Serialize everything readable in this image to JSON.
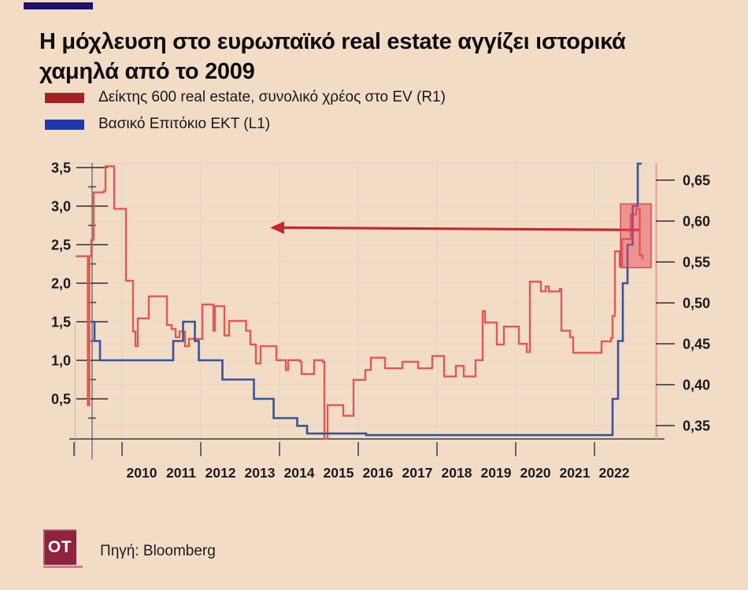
{
  "page": {
    "background_color": "#f3dcc6",
    "accent_bar_color": "#1b1468"
  },
  "header": {
    "title": "Η μόχλευση στο ευρωπαϊκό real estate αγγίζει ιστορικά χαμηλά από το 2009"
  },
  "legend": [
    {
      "label": "Δείκτης 600 real estate, συνολικό χρέος στο EV (R1)",
      "color": "#a81f23"
    },
    {
      "label": "Βασικό Επιτόκιο ΕΚΤ (L1)",
      "color": "#2137b0"
    }
  ],
  "footer": {
    "logo_text": "OT",
    "logo_color": "#8e2240",
    "source": "Πηγή: Bloomberg"
  },
  "chart_data": {
    "type": "line",
    "style": "step-after",
    "grid": true,
    "x_axis": {
      "year_labels": [
        "2010",
        "2011",
        "2012",
        "2013",
        "2014",
        "2015",
        "2016",
        "2017",
        "2018",
        "2019",
        "2020",
        "2021",
        "2022"
      ],
      "range": [
        2008.8,
        2023.55
      ]
    },
    "left_axis": {
      "series": "Βασικό Επιτόκιο ΕΚΤ (L1)",
      "tick_labels": [
        "3,5",
        "3,0",
        "2,5",
        "2,0",
        "1,5",
        "1,0",
        "0,5"
      ],
      "tick_values": [
        3.5,
        3.0,
        2.5,
        2.0,
        1.5,
        1.0,
        0.5
      ],
      "range": [
        0,
        3.57
      ]
    },
    "right_axis": {
      "series": "Δείκτης 600 real estate, συνολικό χρέος στο EV (R1)",
      "tick_labels": [
        "0,65",
        "0,60",
        "0,55",
        "0,50",
        "0,45",
        "0,40",
        "0,35"
      ],
      "tick_values": [
        0.65,
        0.6,
        0.55,
        0.5,
        0.45,
        0.4,
        0.35
      ],
      "range": [
        0.33,
        0.67
      ]
    },
    "series": [
      {
        "name": "Δείκτης 600 real estate, συνολικό χρέος στο EV (R1)",
        "axis": "right",
        "color": "#de5a52",
        "points": [
          [
            2008.82,
            0.557
          ],
          [
            2009.1,
            0.557
          ],
          [
            2009.13,
            0.375
          ],
          [
            2009.17,
            0.557
          ],
          [
            2009.22,
            0.577
          ],
          [
            2009.28,
            0.635
          ],
          [
            2009.54,
            0.637
          ],
          [
            2009.58,
            0.667
          ],
          [
            2009.76,
            0.667
          ],
          [
            2009.8,
            0.615
          ],
          [
            2010.06,
            0.615
          ],
          [
            2010.1,
            0.527
          ],
          [
            2010.24,
            0.527
          ],
          [
            2010.28,
            0.465
          ],
          [
            2010.34,
            0.447
          ],
          [
            2010.4,
            0.481
          ],
          [
            2010.64,
            0.481
          ],
          [
            2010.68,
            0.508
          ],
          [
            2011.1,
            0.508
          ],
          [
            2011.14,
            0.473
          ],
          [
            2011.26,
            0.468
          ],
          [
            2011.36,
            0.458
          ],
          [
            2011.46,
            0.465
          ],
          [
            2011.6,
            0.447
          ],
          [
            2011.7,
            0.456
          ],
          [
            2012.0,
            0.456
          ],
          [
            2012.04,
            0.498
          ],
          [
            2012.28,
            0.498
          ],
          [
            2012.32,
            0.466
          ],
          [
            2012.36,
            0.496
          ],
          [
            2012.56,
            0.496
          ],
          [
            2012.6,
            0.46
          ],
          [
            2012.72,
            0.478
          ],
          [
            2013.1,
            0.478
          ],
          [
            2013.15,
            0.466
          ],
          [
            2013.26,
            0.449
          ],
          [
            2013.4,
            0.426
          ],
          [
            2013.52,
            0.447
          ],
          [
            2013.86,
            0.447
          ],
          [
            2013.92,
            0.43
          ],
          [
            2014.12,
            0.43
          ],
          [
            2014.16,
            0.418
          ],
          [
            2014.22,
            0.43
          ],
          [
            2014.52,
            0.428
          ],
          [
            2014.56,
            0.413
          ],
          [
            2014.82,
            0.413
          ],
          [
            2014.88,
            0.43
          ],
          [
            2015.1,
            0.428
          ],
          [
            2015.14,
            0.334
          ],
          [
            2015.22,
            0.375
          ],
          [
            2015.56,
            0.375
          ],
          [
            2015.62,
            0.362
          ],
          [
            2015.82,
            0.362
          ],
          [
            2015.88,
            0.406
          ],
          [
            2016.12,
            0.406
          ],
          [
            2016.18,
            0.418
          ],
          [
            2016.32,
            0.433
          ],
          [
            2016.62,
            0.433
          ],
          [
            2016.68,
            0.42
          ],
          [
            2017.02,
            0.42
          ],
          [
            2017.12,
            0.428
          ],
          [
            2017.46,
            0.428
          ],
          [
            2017.52,
            0.42
          ],
          [
            2017.82,
            0.42
          ],
          [
            2017.88,
            0.435
          ],
          [
            2018.12,
            0.435
          ],
          [
            2018.18,
            0.41
          ],
          [
            2018.42,
            0.41
          ],
          [
            2018.48,
            0.423
          ],
          [
            2018.62,
            0.423
          ],
          [
            2018.68,
            0.41
          ],
          [
            2018.92,
            0.41
          ],
          [
            2018.98,
            0.43
          ],
          [
            2019.12,
            0.43
          ],
          [
            2019.16,
            0.49
          ],
          [
            2019.22,
            0.476
          ],
          [
            2019.46,
            0.476
          ],
          [
            2019.52,
            0.449
          ],
          [
            2019.64,
            0.449
          ],
          [
            2019.7,
            0.471
          ],
          [
            2020.02,
            0.471
          ],
          [
            2020.08,
            0.45
          ],
          [
            2020.22,
            0.45
          ],
          [
            2020.28,
            0.44
          ],
          [
            2020.36,
            0.526
          ],
          [
            2020.58,
            0.526
          ],
          [
            2020.64,
            0.514
          ],
          [
            2020.76,
            0.52
          ],
          [
            2020.84,
            0.514
          ],
          [
            2021.12,
            0.517
          ],
          [
            2021.16,
            0.466
          ],
          [
            2021.32,
            0.466
          ],
          [
            2021.38,
            0.458
          ],
          [
            2021.46,
            0.439
          ],
          [
            2022.12,
            0.439
          ],
          [
            2022.18,
            0.453
          ],
          [
            2022.36,
            0.453
          ],
          [
            2022.42,
            0.457
          ],
          [
            2022.46,
            0.484
          ],
          [
            2022.52,
            0.563
          ],
          [
            2022.6,
            0.563
          ],
          [
            2022.64,
            0.545
          ],
          [
            2022.7,
            0.578
          ],
          [
            2022.86,
            0.578
          ],
          [
            2022.92,
            0.608
          ],
          [
            2023.02,
            0.608
          ],
          [
            2023.06,
            0.615
          ],
          [
            2023.12,
            0.615
          ],
          [
            2023.15,
            0.558
          ],
          [
            2023.22,
            0.553
          ]
        ]
      },
      {
        "name": "Βασικό Επιτόκιο ΕΚΤ (L1)",
        "axis": "left",
        "color": "#35549f",
        "points": [
          [
            2009.24,
            1.5
          ],
          [
            2009.3,
            1.25
          ],
          [
            2009.44,
            1.0
          ],
          [
            2011.3,
            1.25
          ],
          [
            2011.55,
            1.5
          ],
          [
            2011.85,
            1.25
          ],
          [
            2011.95,
            1.0
          ],
          [
            2012.55,
            0.75
          ],
          [
            2013.35,
            0.5
          ],
          [
            2013.85,
            0.25
          ],
          [
            2014.45,
            0.15
          ],
          [
            2014.7,
            0.05
          ],
          [
            2016.2,
            0.03
          ],
          [
            2022.46,
            0.5
          ],
          [
            2022.6,
            1.25
          ],
          [
            2022.72,
            2.0
          ],
          [
            2022.84,
            2.5
          ],
          [
            2022.97,
            3.0
          ],
          [
            2023.1,
            3.55
          ],
          [
            2023.2,
            3.55
          ]
        ]
      }
    ],
    "annotations": [
      {
        "type": "arrow",
        "axis": "right",
        "value": 0.591,
        "from_year": 2023.14,
        "to_year": 2013.94,
        "color": "#c5292c"
      },
      {
        "type": "highlight-box",
        "axis": "right",
        "year_start": 2022.66,
        "year_end": 2023.44,
        "value_low": 0.543,
        "value_high": 0.621,
        "fill": "rgba(231,76,94,0.5)",
        "stroke": "rgba(208,58,80,0.85)"
      }
    ]
  }
}
